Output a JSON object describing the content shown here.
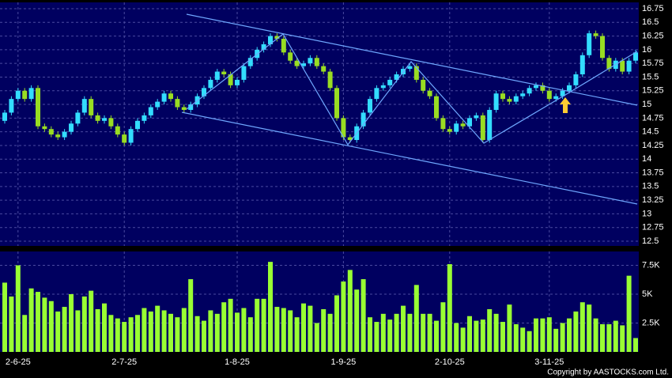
{
  "chart_data": [
    {
      "type": "candlestick",
      "up_color": "#33ddff",
      "down_color": "#99dd22",
      "grid": true,
      "ylim": [
        12.5,
        16.75
      ],
      "yticks": [
        12.5,
        12.75,
        13,
        13.25,
        13.5,
        13.75,
        14,
        14.25,
        14.5,
        14.75,
        15,
        15.25,
        15.5,
        15.75,
        16,
        16.25,
        16.5,
        16.75
      ],
      "open": [
        14.7,
        14.85,
        15.1,
        15.25,
        15.1,
        15.3,
        14.6,
        14.55,
        14.45,
        14.4,
        14.5,
        14.65,
        14.85,
        15.1,
        14.8,
        14.7,
        14.75,
        14.6,
        14.45,
        14.3,
        14.55,
        14.7,
        14.8,
        14.95,
        15.05,
        15.2,
        15.1,
        14.95,
        14.9,
        15,
        15.15,
        15.3,
        15.45,
        15.6,
        15.55,
        15.35,
        15.45,
        15.7,
        15.85,
        16,
        16.1,
        16.25,
        16.2,
        15.95,
        15.8,
        15.7,
        15.75,
        15.85,
        15.7,
        15.6,
        15.3,
        14.75,
        14.4,
        14.35,
        14.6,
        14.85,
        15.1,
        15.3,
        15.35,
        15.45,
        15.55,
        15.65,
        15.7,
        15.45,
        15.25,
        15.15,
        14.75,
        14.55,
        14.5,
        14.65,
        14.6,
        14.75,
        14.8,
        14.35,
        14.9,
        15.2,
        15.1,
        15.05,
        15.15,
        15.2,
        15.3,
        15.35,
        15.25,
        15.1,
        15.15,
        15.25,
        15.35,
        15.55,
        15.9,
        16.3,
        16.25,
        15.85,
        15.65,
        15.8,
        15.6,
        15.8
      ],
      "high": [
        14.9,
        15.15,
        15.3,
        15.3,
        15.35,
        15.35,
        14.65,
        14.6,
        14.5,
        14.55,
        14.7,
        14.9,
        15.15,
        15.15,
        14.85,
        14.8,
        14.8,
        14.65,
        14.5,
        14.6,
        14.75,
        14.85,
        15,
        15.1,
        15.25,
        15.25,
        15.15,
        15,
        15.05,
        15.2,
        15.35,
        15.5,
        15.65,
        15.65,
        15.6,
        15.5,
        15.75,
        15.9,
        16.05,
        16.15,
        16.3,
        16.3,
        16.25,
        16,
        15.85,
        15.8,
        15.9,
        15.9,
        15.75,
        15.65,
        15.35,
        14.8,
        14.45,
        14.65,
        14.9,
        15.15,
        15.35,
        15.4,
        15.5,
        15.6,
        15.7,
        15.75,
        15.75,
        15.5,
        15.3,
        15.2,
        14.8,
        14.6,
        14.7,
        14.7,
        14.8,
        14.85,
        14.85,
        14.95,
        15.25,
        15.25,
        15.15,
        15.2,
        15.25,
        15.35,
        15.4,
        15.4,
        15.3,
        15.2,
        15.3,
        15.4,
        15.6,
        15.95,
        16.35,
        16.35,
        16.3,
        15.9,
        15.85,
        15.85,
        15.85,
        16
      ],
      "low": [
        14.65,
        14.8,
        15.05,
        15.05,
        15.05,
        14.55,
        14.5,
        14.4,
        14.35,
        14.35,
        14.45,
        14.6,
        14.8,
        14.75,
        14.65,
        14.65,
        14.55,
        14.4,
        14.25,
        14.25,
        14.5,
        14.65,
        14.75,
        14.9,
        15,
        15.05,
        14.9,
        14.85,
        14.85,
        14.95,
        15.1,
        15.25,
        15.4,
        15.5,
        15.3,
        15.3,
        15.4,
        15.65,
        15.8,
        15.95,
        16.05,
        16.15,
        15.9,
        15.75,
        15.65,
        15.65,
        15.7,
        15.65,
        15.55,
        15.25,
        14.7,
        14.35,
        14.3,
        14.3,
        14.55,
        14.8,
        15.05,
        15.25,
        15.3,
        15.4,
        15.5,
        15.6,
        15.4,
        15.2,
        15.1,
        14.7,
        14.5,
        14.45,
        14.45,
        14.55,
        14.55,
        14.7,
        14.3,
        14.3,
        14.85,
        15.05,
        15,
        15,
        15.1,
        15.15,
        15.25,
        15.2,
        15.05,
        15.05,
        15.1,
        15.2,
        15.3,
        15.5,
        15.85,
        16.2,
        15.8,
        15.6,
        15.6,
        15.55,
        15.55,
        15.75
      ],
      "close": [
        14.85,
        15.1,
        15.25,
        15.1,
        15.3,
        14.6,
        14.55,
        14.45,
        14.4,
        14.5,
        14.65,
        14.85,
        15.1,
        14.8,
        14.7,
        14.75,
        14.6,
        14.45,
        14.3,
        14.55,
        14.7,
        14.8,
        14.95,
        15.05,
        15.2,
        15.1,
        14.95,
        14.9,
        15,
        15.15,
        15.3,
        15.45,
        15.6,
        15.55,
        15.35,
        15.45,
        15.7,
        15.85,
        16,
        16.1,
        16.25,
        16.2,
        15.95,
        15.8,
        15.7,
        15.75,
        15.85,
        15.7,
        15.6,
        15.3,
        14.75,
        14.4,
        14.35,
        14.6,
        14.85,
        15.1,
        15.3,
        15.35,
        15.45,
        15.55,
        15.65,
        15.7,
        15.45,
        15.25,
        15.15,
        14.75,
        14.55,
        14.5,
        14.65,
        14.6,
        14.75,
        14.8,
        14.35,
        14.9,
        15.2,
        15.1,
        15.05,
        15.15,
        15.2,
        15.3,
        15.35,
        15.25,
        15.1,
        15.15,
        15.25,
        15.35,
        15.55,
        15.9,
        16.3,
        16.25,
        15.85,
        15.65,
        15.8,
        15.6,
        15.8,
        15.95
      ]
    },
    {
      "type": "bar",
      "color": "#99ff33",
      "grid": true,
      "categories": [
        null,
        null,
        "2-6-25",
        null,
        null,
        null,
        null,
        null,
        null,
        null,
        null,
        null,
        null,
        null,
        null,
        null,
        null,
        null,
        "2-7-25",
        null,
        null,
        null,
        null,
        null,
        null,
        null,
        null,
        null,
        null,
        null,
        null,
        null,
        null,
        null,
        null,
        "1-8-25",
        null,
        null,
        null,
        null,
        null,
        null,
        null,
        null,
        null,
        null,
        null,
        null,
        null,
        null,
        null,
        "1-9-25",
        null,
        null,
        null,
        null,
        null,
        null,
        null,
        null,
        null,
        null,
        null,
        null,
        null,
        null,
        null,
        "2-10-25",
        null,
        null,
        null,
        null,
        null,
        null,
        null,
        null,
        null,
        null,
        null,
        null,
        null,
        null,
        "3-11-25",
        null,
        null,
        null,
        null,
        null,
        null,
        null,
        null,
        null,
        null,
        null,
        null,
        null
      ],
      "values": [
        6000,
        4800,
        7500,
        3200,
        5500,
        5200,
        4700,
        4400,
        3500,
        3900,
        5000,
        3600,
        4800,
        5300,
        3700,
        4200,
        3200,
        2900,
        2600,
        3000,
        3200,
        3800,
        3500,
        4000,
        3600,
        3300,
        3000,
        3800,
        6300,
        3100,
        2700,
        3600,
        3300,
        4300,
        4600,
        3400,
        3800,
        3000,
        4600,
        4600,
        7800,
        3900,
        3800,
        3600,
        3000,
        4200,
        4000,
        2500,
        3700,
        3300,
        4900,
        6100,
        7100,
        5400,
        6300,
        3000,
        2600,
        3300,
        2800,
        3300,
        4000,
        3300,
        5800,
        3300,
        3300,
        2700,
        4300,
        7600,
        2500,
        2100,
        3100,
        2700,
        2800,
        3700,
        3300,
        2600,
        4100,
        2400,
        2100,
        1800,
        2900,
        2900,
        3000,
        2000,
        2500,
        2900,
        3500,
        4300,
        4100,
        2900,
        2400,
        2400,
        2700,
        2300,
        6600,
        1200
      ],
      "ylim": [
        0,
        8700
      ],
      "yticks": [
        {
          "value": 2500,
          "label": "2.5K"
        },
        {
          "value": 5000,
          "label": "5K"
        },
        {
          "value": 7500,
          "label": "7.5K"
        }
      ]
    }
  ],
  "copyright": "Copyright by AASTOCKS.com Ltd."
}
